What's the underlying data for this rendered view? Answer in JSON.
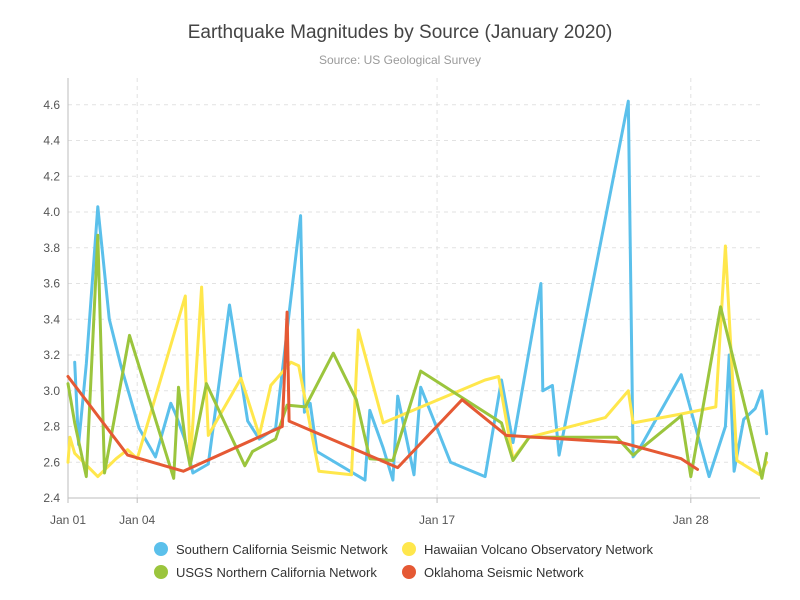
{
  "chart_data": {
    "type": "line",
    "title": "Earthquake Magnitudes by Source (January 2020)",
    "subtitle": "Source: US Geological Survey",
    "xlabel": "",
    "ylabel": "",
    "xlim": [
      "2020-01-01",
      "2020-01-31"
    ],
    "ylim": [
      2.4,
      4.75
    ],
    "x_ticks": [
      {
        "date": "2020-01-01",
        "label": "Jan 01"
      },
      {
        "date": "2020-01-04",
        "label": "Jan 04"
      },
      {
        "date": "2020-01-17",
        "label": "Jan 17"
      },
      {
        "date": "2020-01-28",
        "label": "Jan 28"
      }
    ],
    "y_ticks": [
      "2.4",
      "2.6",
      "2.8",
      "3.0",
      "3.2",
      "3.4",
      "3.6",
      "3.8",
      "4.0",
      "4.2",
      "4.4",
      "4.6"
    ],
    "grid": true,
    "legend_position": "bottom",
    "series": [
      {
        "name": "Southern California Seismic Network",
        "color": "#5bc0eb",
        "points": [
          [
            "2020-01-01 07:00",
            3.16
          ],
          [
            "2020-01-01 11:00",
            2.7
          ],
          [
            "2020-01-01 19:00",
            3.15
          ],
          [
            "2020-01-02 07:00",
            4.03
          ],
          [
            "2020-01-02 19:00",
            3.4
          ],
          [
            "2020-01-03 07:00",
            3.14
          ],
          [
            "2020-01-04 02:00",
            2.79
          ],
          [
            "2020-01-04 19:00",
            2.63
          ],
          [
            "2020-01-05 11:00",
            2.93
          ],
          [
            "2020-01-05 16:00",
            2.87
          ],
          [
            "2020-01-06 02:00",
            2.72
          ],
          [
            "2020-01-06 10:00",
            2.54
          ],
          [
            "2020-01-07 02:00",
            2.59
          ],
          [
            "2020-01-08 00:00",
            3.48
          ],
          [
            "2020-01-08 19:00",
            2.83
          ],
          [
            "2020-01-09 07:00",
            2.73
          ],
          [
            "2020-01-10 00:00",
            2.79
          ],
          [
            "2020-01-11 02:00",
            3.98
          ],
          [
            "2020-01-11 06:00",
            2.88
          ],
          [
            "2020-01-11 12:00",
            2.93
          ],
          [
            "2020-01-11 19:00",
            2.66
          ],
          [
            "2020-01-13 21:00",
            2.5
          ],
          [
            "2020-01-14 02:00",
            2.89
          ],
          [
            "2020-01-14 16:00",
            2.68
          ],
          [
            "2020-01-15 02:00",
            2.5
          ],
          [
            "2020-01-15 07:00",
            2.97
          ],
          [
            "2020-01-16 00:00",
            2.53
          ],
          [
            "2020-01-16 07:00",
            3.02
          ],
          [
            "2020-01-17 14:00",
            2.6
          ],
          [
            "2020-01-19 02:00",
            2.52
          ],
          [
            "2020-01-19 19:00",
            3.06
          ],
          [
            "2020-01-20 07:00",
            2.71
          ],
          [
            "2020-01-21 12:00",
            3.6
          ],
          [
            "2020-01-21 14:00",
            3.0
          ],
          [
            "2020-01-22 00:00",
            3.03
          ],
          [
            "2020-01-22 07:00",
            2.64
          ],
          [
            "2020-01-25 07:00",
            4.62
          ],
          [
            "2020-01-25 12:00",
            2.63
          ],
          [
            "2020-01-25 19:00",
            2.68
          ],
          [
            "2020-01-27 14:00",
            3.09
          ],
          [
            "2020-01-28 19:00",
            2.52
          ],
          [
            "2020-01-29 12:00",
            2.8
          ],
          [
            "2020-01-29 16:00",
            3.2
          ],
          [
            "2020-01-29 21:00",
            2.55
          ],
          [
            "2020-01-30 07:00",
            2.84
          ],
          [
            "2020-01-30 19:00",
            2.9
          ],
          [
            "2020-01-31 02:00",
            3.0
          ],
          [
            "2020-01-31 07:00",
            2.76
          ]
        ]
      },
      {
        "name": "Hawaiian Volcano Observatory Network",
        "color": "#ffe74c",
        "points": [
          [
            "2020-01-01 00:00",
            2.6
          ],
          [
            "2020-01-01 02:00",
            2.74
          ],
          [
            "2020-01-01 07:00",
            2.65
          ],
          [
            "2020-01-02 07:00",
            2.52
          ],
          [
            "2020-01-03 02:00",
            2.62
          ],
          [
            "2020-01-03 14:00",
            2.67
          ],
          [
            "2020-01-04 00:00",
            2.62
          ],
          [
            "2020-01-06 02:00",
            3.53
          ],
          [
            "2020-01-06 07:00",
            2.58
          ],
          [
            "2020-01-06 19:00",
            3.58
          ],
          [
            "2020-01-07 02:00",
            2.75
          ],
          [
            "2020-01-08 12:00",
            3.07
          ],
          [
            "2020-01-09 07:00",
            2.75
          ],
          [
            "2020-01-09 19:00",
            3.03
          ],
          [
            "2020-01-10 16:00",
            3.16
          ],
          [
            "2020-01-11 00:00",
            3.14
          ],
          [
            "2020-01-11 21:00",
            2.55
          ],
          [
            "2020-01-13 07:00",
            2.53
          ],
          [
            "2020-01-13 14:00",
            3.34
          ],
          [
            "2020-01-14 16:00",
            2.82
          ],
          [
            "2020-01-19 02:00",
            3.06
          ],
          [
            "2020-01-19 16:00",
            3.08
          ],
          [
            "2020-01-20 07:00",
            2.62
          ],
          [
            "2020-01-21 00:00",
            2.74
          ],
          [
            "2020-01-24 07:00",
            2.85
          ],
          [
            "2020-01-25 07:00",
            3.0
          ],
          [
            "2020-01-25 12:00",
            2.82
          ],
          [
            "2020-01-27 14:00",
            2.87
          ],
          [
            "2020-01-29 02:00",
            2.91
          ],
          [
            "2020-01-29 12:00",
            3.81
          ],
          [
            "2020-01-30 00:00",
            2.61
          ],
          [
            "2020-01-31 00:00",
            2.53
          ],
          [
            "2020-01-31 07:00",
            2.6
          ]
        ]
      },
      {
        "name": "USGS Northern California Network",
        "color": "#9bc53d",
        "points": [
          [
            "2020-01-01 00:00",
            3.04
          ],
          [
            "2020-01-01 07:00",
            2.82
          ],
          [
            "2020-01-01 19:00",
            2.52
          ],
          [
            "2020-01-02 07:00",
            3.87
          ],
          [
            "2020-01-02 14:00",
            2.54
          ],
          [
            "2020-01-03 16:00",
            3.31
          ],
          [
            "2020-01-05 14:00",
            2.51
          ],
          [
            "2020-01-05 19:00",
            3.02
          ],
          [
            "2020-01-06 02:00",
            2.72
          ],
          [
            "2020-01-06 07:00",
            2.58
          ],
          [
            "2020-01-07 00:00",
            3.04
          ],
          [
            "2020-01-08 16:00",
            2.58
          ],
          [
            "2020-01-09 00:00",
            2.66
          ],
          [
            "2020-01-10 00:00",
            2.73
          ],
          [
            "2020-01-10 12:00",
            2.92
          ],
          [
            "2020-01-11 07:00",
            2.91
          ],
          [
            "2020-01-12 12:00",
            3.21
          ],
          [
            "2020-01-13 12:00",
            2.95
          ],
          [
            "2020-01-14 02:00",
            2.62
          ],
          [
            "2020-01-15 02:00",
            2.61
          ],
          [
            "2020-01-16 07:00",
            3.11
          ],
          [
            "2020-01-19 19:00",
            2.82
          ],
          [
            "2020-01-20 07:00",
            2.61
          ],
          [
            "2020-01-21 00:00",
            2.74
          ],
          [
            "2020-01-24 19:00",
            2.74
          ],
          [
            "2020-01-25 12:00",
            2.64
          ],
          [
            "2020-01-27 14:00",
            2.86
          ],
          [
            "2020-01-28 00:00",
            2.52
          ],
          [
            "2020-01-29 07:00",
            3.47
          ],
          [
            "2020-01-30 12:00",
            2.83
          ],
          [
            "2020-01-31 02:00",
            2.51
          ],
          [
            "2020-01-31 07:00",
            2.65
          ]
        ]
      },
      {
        "name": "Oklahoma Seismic Network",
        "color": "#e55934",
        "points": [
          [
            "2020-01-01 00:00",
            3.08
          ],
          [
            "2020-01-03 14:00",
            2.64
          ],
          [
            "2020-01-06 00:00",
            2.55
          ],
          [
            "2020-01-10 07:00",
            2.8
          ],
          [
            "2020-01-10 12:00",
            3.44
          ],
          [
            "2020-01-10 14:00",
            2.83
          ],
          [
            "2020-01-15 07:00",
            2.57
          ],
          [
            "2020-01-18 02:00",
            2.95
          ],
          [
            "2020-01-20 00:00",
            2.75
          ],
          [
            "2020-01-25 00:00",
            2.71
          ],
          [
            "2020-01-27 14:00",
            2.62
          ],
          [
            "2020-01-28 07:00",
            2.56
          ]
        ]
      }
    ]
  }
}
